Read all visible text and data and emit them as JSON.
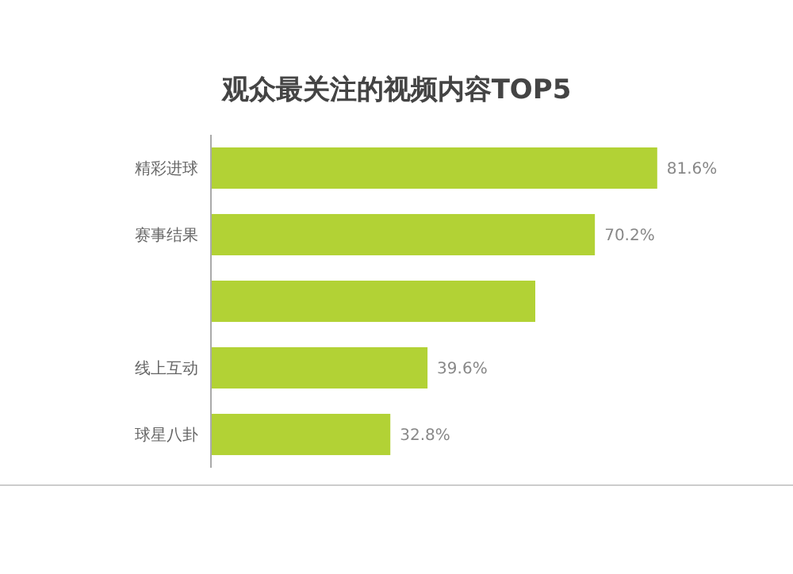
{
  "chart_data": {
    "type": "bar",
    "orientation": "horizontal",
    "title": "观众最关注的视频内容TOP5",
    "categories": [
      "精彩进球",
      "赛事结果",
      null,
      "线上互动",
      "球星八卦"
    ],
    "values": [
      81.6,
      70.2,
      59.3,
      39.6,
      32.8
    ],
    "value_labels": [
      "81.6%",
      "70.2%",
      null,
      "39.6%",
      "32.8%"
    ],
    "color": "#b2d235"
  }
}
